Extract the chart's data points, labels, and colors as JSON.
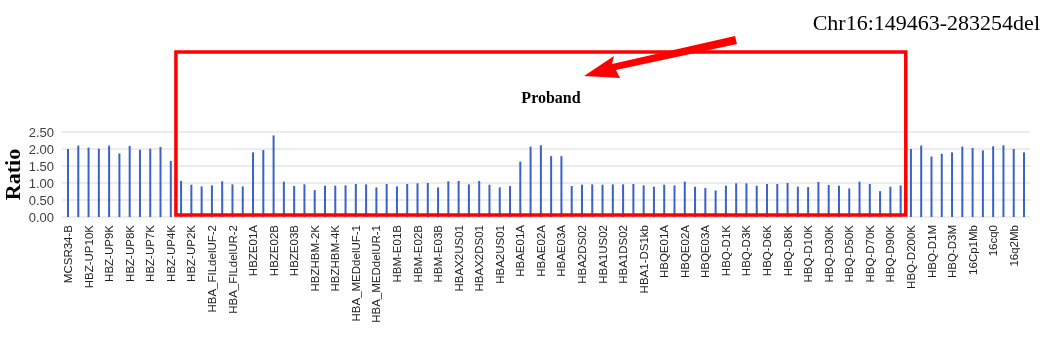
{
  "chart_data": {
    "type": "bar",
    "title": "Proband",
    "ylabel": "Ratio",
    "annotations": [
      "Chr16:149463-283254del"
    ],
    "categories": [
      "MCSR34-B",
      null,
      "HBZ-UP10K",
      null,
      "HBZ-UP9K",
      null,
      "HBZ-UP8K",
      null,
      "HBZ-UP7K",
      null,
      "HBZ-UP4K",
      null,
      "HBZ-UP2K",
      null,
      "HBA_FILdelUF-2",
      null,
      "HBA_FILdelUR-2",
      null,
      "HBZE01A",
      null,
      "HBZE02B",
      null,
      "HBZE03B",
      null,
      "HBZHBM-2K",
      null,
      "HBZHBM-4K",
      null,
      "HBA_MEDdelUF-1",
      null,
      "HBA_MEDdelUR-1",
      null,
      "HBM-E01B",
      null,
      "HBM-E02B",
      null,
      "HBM-E03B",
      null,
      "HBAX2US01",
      null,
      "HBAX2DS01",
      null,
      "HBA2US01",
      null,
      "HBAE01A",
      null,
      "HBAE02A",
      null,
      "HBAE03A",
      null,
      "HBA2DS02",
      null,
      "HBA1US02",
      null,
      "HBA1DS02",
      null,
      "HBA1-DS1kb",
      null,
      "HBQE01A",
      null,
      "HBQE02A",
      null,
      "HBQE03A",
      null,
      "HBQ-D1K",
      null,
      "HBQ-D3K",
      null,
      "HBQ-D6K",
      null,
      "HBQ-D8K",
      null,
      "HBQ-D10K",
      null,
      "HBQ-D30K",
      null,
      "HBQ-D50K",
      null,
      "HBQ-D70K",
      null,
      "HBQ-D90K",
      null,
      "HBQ-D200K",
      null,
      "HBQ-D1M",
      null,
      "HBQ-D3M",
      null,
      "16Cp1Mb",
      null,
      "16cq0",
      null,
      "16q2Mb",
      null
    ],
    "values": [
      2.0,
      2.1,
      2.04,
      2.01,
      2.1,
      1.87,
      2.09,
      1.98,
      2.01,
      2.06,
      1.65,
      1.06,
      0.95,
      0.9,
      0.93,
      1.05,
      0.96,
      0.9,
      1.9,
      1.97,
      2.4,
      1.04,
      0.91,
      0.96,
      0.79,
      0.92,
      0.92,
      0.93,
      0.97,
      0.96,
      0.87,
      0.97,
      0.9,
      0.97,
      0.99,
      1.0,
      0.87,
      1.05,
      1.06,
      0.96,
      1.06,
      0.95,
      0.87,
      0.91,
      1.63,
      2.07,
      2.11,
      1.79,
      1.79,
      0.91,
      0.95,
      0.96,
      0.95,
      0.96,
      0.96,
      0.97,
      0.93,
      0.89,
      0.95,
      0.93,
      1.04,
      0.89,
      0.85,
      0.78,
      0.92,
      0.99,
      0.99,
      0.92,
      0.97,
      0.97,
      1.0,
      0.89,
      0.88,
      1.03,
      0.94,
      0.92,
      0.84,
      1.04,
      0.97,
      0.76,
      0.89,
      0.93,
      2.0,
      2.1,
      1.78,
      1.86,
      1.9,
      2.07,
      2.03,
      1.96,
      2.08,
      2.11,
      2.0,
      1.9
    ],
    "color": "#3a62c8",
    "ylim": [
      0,
      2.5
    ],
    "yticks": [
      {
        "value": 0,
        "label": "0.00"
      },
      {
        "value": 0.5,
        "label": "0.50"
      },
      {
        "value": 1,
        "label": "1.00"
      },
      {
        "value": 1.5,
        "label": "1.50"
      },
      {
        "value": 2,
        "label": "2.00"
      },
      {
        "value": 2.5,
        "label": "2.50"
      }
    ],
    "grid": "y"
  }
}
